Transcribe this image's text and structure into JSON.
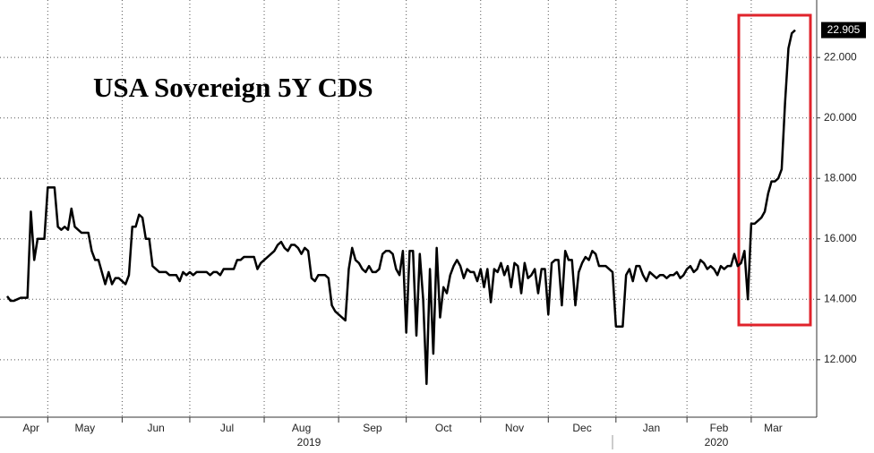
{
  "chart_data": {
    "type": "line",
    "title": "USA Sovereign 5Y CDS",
    "categories": [
      "Apr",
      null,
      null,
      null,
      null,
      null,
      null,
      null,
      null,
      null,
      null,
      null,
      "May",
      null,
      null,
      null,
      null,
      null,
      null,
      null,
      null,
      null,
      null,
      null,
      null,
      null,
      null,
      null,
      null,
      null,
      null,
      null,
      null,
      null,
      "Jun",
      null,
      null,
      null,
      null,
      null,
      null,
      null,
      null,
      null,
      null,
      null,
      null,
      null,
      null,
      null,
      null,
      null,
      null,
      null,
      "Jul",
      null,
      null,
      null,
      null,
      null,
      null,
      null,
      null,
      null,
      null,
      null,
      null,
      null,
      null,
      null,
      null,
      null,
      null,
      null,
      null,
      null,
      "Aug",
      null,
      null,
      null,
      null,
      null,
      null,
      null,
      null,
      null,
      null,
      null,
      null,
      null,
      null,
      null,
      null,
      null,
      null,
      null,
      null,
      null,
      "Sep",
      null,
      null,
      null,
      null,
      null,
      null,
      null,
      null,
      null,
      null,
      null,
      null,
      null,
      null,
      null,
      null,
      null,
      null,
      null,
      "Oct",
      null,
      null,
      null,
      null,
      null,
      null,
      null,
      null,
      null,
      null,
      null,
      null,
      null,
      null,
      null,
      null,
      null,
      null,
      null,
      null,
      null,
      "Nov",
      null,
      null,
      null,
      null,
      null,
      null,
      null,
      null,
      null,
      null,
      null,
      null,
      null,
      null,
      null,
      null,
      null,
      null,
      null,
      "Dec",
      null,
      null,
      null,
      null,
      null,
      null,
      null,
      null,
      null,
      null,
      null,
      null,
      null,
      null,
      null,
      null,
      null,
      null,
      null,
      "Jan",
      null,
      null,
      null,
      null,
      null,
      null,
      null,
      null,
      null,
      null,
      null,
      null,
      null,
      null,
      null,
      null,
      null,
      null,
      null,
      null,
      "Feb",
      null,
      null,
      null,
      null,
      null,
      null,
      null,
      null,
      null,
      null,
      null,
      null,
      null,
      null,
      null,
      null,
      null,
      null,
      "Mar",
      null,
      null,
      null,
      null,
      null,
      null,
      null,
      null,
      null,
      null,
      null,
      null,
      null
    ],
    "values": [
      14.1,
      13.95,
      13.95,
      14.0,
      14.05,
      14.05,
      14.05,
      16.9,
      15.3,
      16.0,
      16.0,
      16.0,
      17.7,
      17.7,
      17.7,
      16.4,
      16.3,
      16.4,
      16.3,
      17.0,
      16.4,
      16.3,
      16.2,
      16.2,
      16.2,
      15.6,
      15.3,
      15.3,
      14.9,
      14.5,
      14.9,
      14.5,
      14.7,
      14.7,
      14.6,
      14.5,
      14.8,
      16.4,
      16.4,
      16.8,
      16.7,
      16.0,
      16.0,
      15.1,
      15.0,
      14.9,
      14.9,
      14.9,
      14.8,
      14.8,
      14.8,
      14.6,
      14.9,
      14.8,
      14.9,
      14.8,
      14.9,
      14.9,
      14.9,
      14.9,
      14.8,
      14.9,
      14.9,
      14.8,
      15.0,
      15.0,
      15.0,
      15.0,
      15.3,
      15.3,
      15.4,
      15.4,
      15.4,
      15.4,
      15.0,
      15.2,
      15.3,
      15.4,
      15.5,
      15.6,
      15.8,
      15.9,
      15.7,
      15.6,
      15.8,
      15.8,
      15.7,
      15.5,
      15.7,
      15.6,
      14.7,
      14.6,
      14.8,
      14.8,
      14.8,
      14.7,
      13.8,
      13.6,
      13.5,
      13.4,
      13.3,
      15.0,
      15.7,
      15.3,
      15.2,
      15.0,
      14.9,
      15.1,
      14.9,
      14.9,
      15.0,
      15.5,
      15.6,
      15.6,
      15.5,
      15.0,
      14.8,
      15.6,
      12.9,
      15.6,
      15.6,
      12.8,
      15.5,
      14.0,
      11.2,
      15.0,
      12.2,
      15.7,
      13.4,
      14.4,
      14.2,
      14.8,
      15.1,
      15.3,
      15.1,
      14.7,
      15.0,
      14.9,
      14.9,
      14.6,
      15.0,
      14.4,
      15.0,
      13.9,
      15.0,
      14.9,
      15.2,
      14.8,
      15.1,
      14.4,
      15.2,
      15.1,
      14.2,
      15.2,
      14.7,
      14.8,
      15.0,
      14.2,
      15.0,
      15.0,
      13.5,
      15.2,
      15.3,
      15.3,
      13.8,
      15.6,
      15.3,
      15.3,
      13.8,
      14.9,
      15.2,
      15.4,
      15.3,
      15.6,
      15.5,
      15.1,
      15.1,
      15.1,
      15.0,
      14.9,
      13.1,
      13.1,
      13.1,
      14.8,
      15.0,
      14.6,
      15.1,
      15.1,
      14.8,
      14.6,
      14.9,
      14.8,
      14.7,
      14.8,
      14.8,
      14.7,
      14.8,
      14.8,
      14.9,
      14.7,
      14.8,
      15.0,
      15.1,
      14.9,
      15.0,
      15.3,
      15.2,
      15.0,
      15.1,
      15.0,
      14.8,
      15.1,
      15.0,
      15.1,
      15.1,
      15.5,
      15.1,
      15.2,
      15.6,
      14.0,
      16.5,
      16.5,
      16.6,
      16.7,
      16.9,
      17.5,
      17.9,
      17.9,
      18.0,
      18.3,
      20.5,
      22.3,
      22.8,
      22.905
    ],
    "color": "#000000",
    "year_labels": [
      "2019",
      "2020"
    ],
    "ylim": [
      10.1,
      23.9
    ],
    "yticks": [
      {
        "value": 12,
        "label": "12.000"
      },
      {
        "value": 14,
        "label": "14.000"
      },
      {
        "value": 16,
        "label": "16.000"
      },
      {
        "value": 18,
        "label": "18.000"
      },
      {
        "value": 20,
        "label": "20.000"
      },
      {
        "value": 22,
        "label": "22.000"
      }
    ],
    "grid": true
  }
}
